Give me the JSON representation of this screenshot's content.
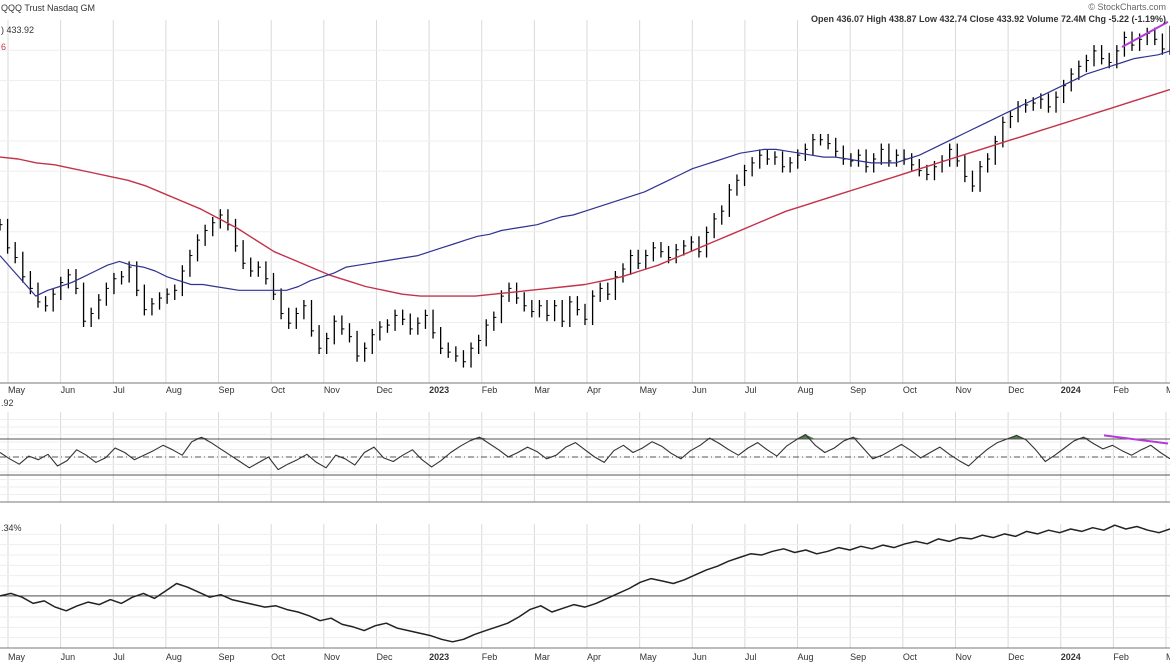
{
  "header": {
    "title": "QQQ Trust Nasdaq GM",
    "watermark": "© StockCharts.com",
    "ohlc_text": "Open 436.07  High 438.87  Low 432.74  Close 433.92  Volume 72.4M  Chg -5.22 (-1.19%)",
    "price_label": ") 433.92",
    "red_marker": "6",
    "rsi_label": ".92",
    "perf_label": ".34%"
  },
  "colors": {
    "price_bars": "#000000",
    "ma_short": "#2f3391",
    "ma_long": "#c2334a",
    "divergence": "#b23cd6",
    "rsi_fill": "#4e7a4b",
    "grid": "#d9d9d9",
    "axis_text": "#333333"
  },
  "chart_data": [
    {
      "type": "line",
      "panel": "price",
      "title": "QQQ Trust Nasdaq GM",
      "x_tick_labels": [
        "May",
        "Jun",
        "Jul",
        "Aug",
        "Sep",
        "Oct",
        "Nov",
        "Dec",
        "2023",
        "Feb",
        "Mar",
        "Apr",
        "May",
        "Jun",
        "Jul",
        "Aug",
        "Sep",
        "Oct",
        "Nov",
        "Dec",
        "2024",
        "Feb",
        "M"
      ],
      "ylim": [
        252,
        440
      ],
      "series": [
        {
          "values": [
            334,
            322,
            317,
            307,
            301,
            294,
            292,
            298,
            304,
            308,
            301,
            284,
            288,
            295,
            301,
            306,
            307,
            312,
            300,
            290,
            293,
            296,
            298,
            300,
            310,
            318,
            326,
            331,
            335,
            339,
            334,
            323,
            314,
            310,
            312,
            306,
            298,
            288,
            283,
            288,
            292,
            279,
            270,
            275,
            284,
            280,
            276,
            266,
            270,
            277,
            281,
            282,
            287,
            285,
            280,
            283,
            287,
            278,
            270,
            268,
            266,
            263,
            270,
            274,
            282,
            286,
            297,
            301,
            296,
            292,
            289,
            292,
            287,
            292,
            284,
            294,
            290,
            285,
            297,
            301,
            298,
            307,
            311,
            318,
            314,
            318,
            322,
            320,
            317,
            321,
            323,
            325,
            320,
            330,
            337,
            341,
            352,
            357,
            362,
            366,
            370,
            368,
            369,
            364,
            366,
            370,
            373,
            378,
            378,
            376,
            372,
            368,
            367,
            370,
            364,
            368,
            373,
            367,
            370,
            368,
            365,
            362,
            360,
            364,
            367,
            373,
            367,
            359,
            354,
            364,
            368,
            377,
            387,
            390,
            395,
            396,
            397,
            399,
            395,
            400,
            406,
            412,
            416,
            419,
            424,
            420,
            418,
            424,
            431,
            427,
            430,
            433,
            430,
            425,
            434
          ]
        },
        {
          "values": [
            318,
            311,
            304,
            297,
            300,
            302,
            304,
            307,
            310,
            313,
            315,
            313,
            312,
            310,
            307,
            305,
            303,
            303,
            302,
            301,
            300,
            300,
            300,
            300,
            300,
            302,
            305,
            307,
            309,
            312,
            313,
            314,
            315,
            316,
            317,
            318,
            320,
            322,
            324,
            326,
            328,
            329,
            331,
            332,
            333,
            334,
            336,
            338,
            339,
            341,
            343,
            345,
            347,
            349,
            351,
            354,
            357,
            360,
            363,
            365,
            367,
            369,
            371,
            372,
            373,
            373,
            372,
            371,
            370,
            369,
            369,
            368,
            367,
            366,
            366,
            366,
            368,
            370,
            373,
            376,
            379,
            382,
            385,
            388,
            391,
            394,
            397,
            400,
            403,
            406,
            409,
            412,
            414,
            416,
            418,
            420,
            421,
            422,
            424
          ]
        },
        {
          "values": [
            369,
            368,
            366,
            365,
            363,
            361,
            359,
            357,
            354,
            350,
            346,
            342,
            337,
            332,
            326,
            320,
            316,
            312,
            308,
            305,
            302,
            300,
            298,
            297,
            297,
            297,
            297,
            298,
            299,
            300,
            301,
            302,
            303,
            305,
            307,
            310,
            313,
            317,
            321,
            325,
            329,
            333,
            337,
            341,
            344,
            347,
            350,
            353,
            356,
            359,
            362,
            365,
            368,
            371,
            374,
            377,
            380,
            383,
            386,
            389,
            392,
            395,
            398,
            401,
            404
          ]
        }
      ]
    },
    {
      "type": "line",
      "panel": "rsi",
      "ylim": [
        0,
        100
      ],
      "reference_lines": [
        70,
        50,
        30
      ],
      "series": [
        {
          "values": [
            55,
            48,
            42,
            51,
            47,
            53,
            40,
            46,
            58,
            52,
            44,
            49,
            60,
            55,
            47,
            52,
            57,
            63,
            58,
            52,
            67,
            72,
            66,
            59,
            52,
            45,
            38,
            44,
            50,
            36,
            42,
            47,
            53,
            44,
            38,
            52,
            48,
            41,
            55,
            61,
            49,
            45,
            52,
            58,
            47,
            39,
            46,
            55,
            62,
            68,
            72,
            65,
            58,
            50,
            55,
            61,
            56,
            48,
            52,
            61,
            66,
            58,
            50,
            44,
            57,
            63,
            55,
            60,
            67,
            62,
            54,
            48,
            57,
            63,
            71,
            65,
            58,
            52,
            60,
            66,
            58,
            51,
            62,
            69,
            75,
            63,
            55,
            60,
            68,
            72,
            60,
            48,
            52,
            58,
            64,
            57,
            49,
            55,
            61,
            53,
            46,
            40,
            50,
            59,
            66,
            70,
            74,
            69,
            58,
            45,
            52,
            60,
            68,
            72,
            65,
            59,
            63,
            57,
            52,
            58,
            63,
            55,
            48
          ]
        }
      ]
    },
    {
      "type": "line",
      "panel": "relative_performance",
      "series": [
        {
          "values": [
            42,
            44,
            41,
            36,
            38,
            33,
            30,
            34,
            37,
            35,
            39,
            36,
            41,
            44,
            40,
            46,
            52,
            49,
            45,
            41,
            43,
            39,
            37,
            35,
            33,
            34,
            31,
            29,
            26,
            22,
            24,
            19,
            17,
            14,
            18,
            20,
            16,
            14,
            12,
            10,
            7,
            5,
            7,
            11,
            14,
            17,
            20,
            25,
            31,
            34,
            29,
            32,
            35,
            33,
            36,
            40,
            44,
            48,
            53,
            56,
            54,
            52,
            55,
            59,
            63,
            66,
            70,
            73,
            76,
            75,
            78,
            80,
            77,
            79,
            76,
            78,
            81,
            79,
            82,
            80,
            83,
            81,
            84,
            86,
            84,
            88,
            86,
            89,
            88,
            91,
            89,
            92,
            90,
            94,
            92,
            95,
            93,
            96,
            94,
            97,
            95,
            99,
            96,
            98,
            95,
            93,
            96
          ]
        }
      ]
    }
  ]
}
